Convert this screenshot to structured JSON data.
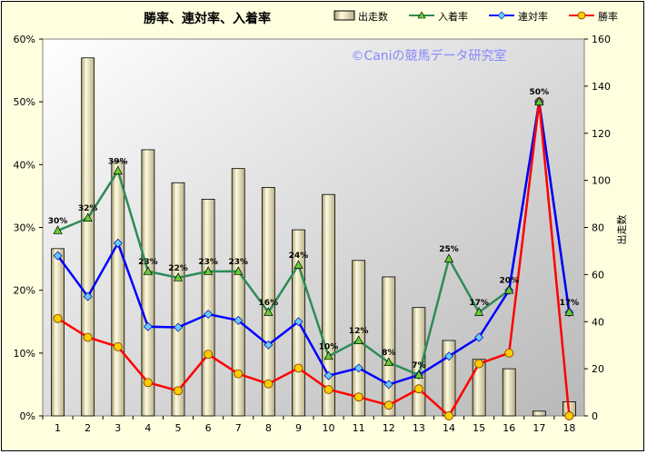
{
  "chart_data": {
    "type": "bar+line",
    "title": "勝率、連対率、入着率",
    "watermark": "©Caniの競馬データ研究室",
    "categories": [
      "1",
      "2",
      "3",
      "4",
      "5",
      "6",
      "7",
      "8",
      "9",
      "10",
      "11",
      "12",
      "13",
      "14",
      "15",
      "16",
      "17",
      "18"
    ],
    "bar_series": {
      "name": "出走数",
      "values": [
        71,
        152,
        108,
        113,
        99,
        92,
        105,
        97,
        79,
        94,
        66,
        59,
        46,
        32,
        24,
        20,
        2,
        6
      ],
      "axis": "right",
      "color": "#e8e4a8"
    },
    "line_series": [
      {
        "name": "入着率",
        "color": "#2e8b57",
        "marker": "triangle",
        "values": [
          29.5,
          31.5,
          39,
          23,
          22,
          23,
          23,
          16.5,
          24,
          9.5,
          12,
          8.5,
          6.5,
          25,
          16.5,
          20,
          50,
          16.5
        ],
        "labels": [
          "30%",
          "32%",
          "39%",
          "23%",
          "22%",
          "23%",
          "23%",
          "16%",
          "24%",
          "10%",
          "12%",
          "8%",
          "7%",
          "25%",
          "17%",
          "20%",
          "50%",
          "17%"
        ]
      },
      {
        "name": "連対率",
        "color": "#0000ff",
        "marker": "diamond",
        "values": [
          25.5,
          19,
          27.5,
          14.2,
          14.1,
          16.2,
          15.2,
          11.3,
          15,
          6.4,
          7.6,
          5,
          6.5,
          9.5,
          12.5,
          20,
          50,
          16.5
        ]
      },
      {
        "name": "勝率",
        "color": "#ff0000",
        "marker": "circle",
        "values": [
          15.5,
          12.5,
          11,
          5.3,
          4,
          9.8,
          6.7,
          5.1,
          7.6,
          4.2,
          3,
          1.7,
          4.3,
          0,
          8.3,
          10,
          50,
          0
        ]
      }
    ],
    "left_axis": {
      "ylim": [
        0,
        60
      ],
      "ticks": [
        "0%",
        "10%",
        "20%",
        "30%",
        "40%",
        "50%",
        "60%"
      ]
    },
    "right_axis": {
      "ylim": [
        0,
        160
      ],
      "ticks": [
        "0",
        "20",
        "40",
        "60",
        "80",
        "100",
        "120",
        "140",
        "160"
      ],
      "label": "出走数"
    },
    "legend_position": "top-right",
    "grid": false
  }
}
